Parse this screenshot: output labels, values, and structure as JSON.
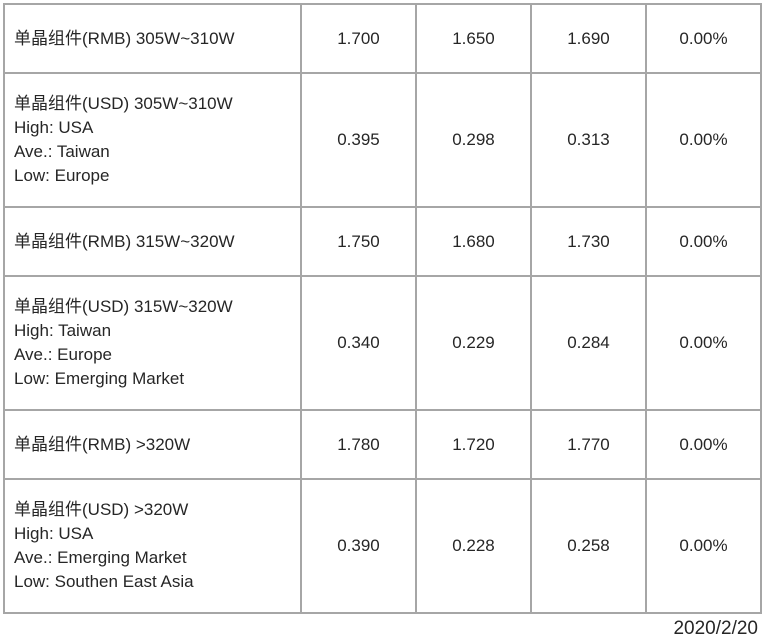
{
  "colors": {
    "background": "#ffffff",
    "border": "#a6a6a6",
    "text": "#262626"
  },
  "table": {
    "rows": [
      {
        "label_lines": [
          "单晶组件(RMB) 305W~310W"
        ],
        "values": [
          "1.700",
          "1.650",
          "1.690",
          "0.00%"
        ]
      },
      {
        "label_lines": [
          "单晶组件(USD) 305W~310W",
          "High: USA",
          "Ave.: Taiwan",
          "Low: Europe"
        ],
        "values": [
          "0.395",
          "0.298",
          "0.313",
          "0.00%"
        ]
      },
      {
        "label_lines": [
          "单晶组件(RMB) 315W~320W"
        ],
        "values": [
          "1.750",
          "1.680",
          "1.730",
          "0.00%"
        ]
      },
      {
        "label_lines": [
          "单晶组件(USD) 315W~320W",
          "High: Taiwan",
          "Ave.: Europe",
          "Low: Emerging Market"
        ],
        "values": [
          "0.340",
          "0.229",
          "0.284",
          "0.00%"
        ]
      },
      {
        "label_lines": [
          "单晶组件(RMB) >320W"
        ],
        "values": [
          "1.780",
          "1.720",
          "1.770",
          "0.00%"
        ]
      },
      {
        "label_lines": [
          "单晶组件(USD) >320W",
          "High: USA",
          "Ave.: Emerging Market",
          "Low: Southen East Asia"
        ],
        "values": [
          "0.390",
          "0.228",
          "0.258",
          "0.00%"
        ]
      }
    ]
  },
  "footer": {
    "date": "2020/2/20"
  }
}
